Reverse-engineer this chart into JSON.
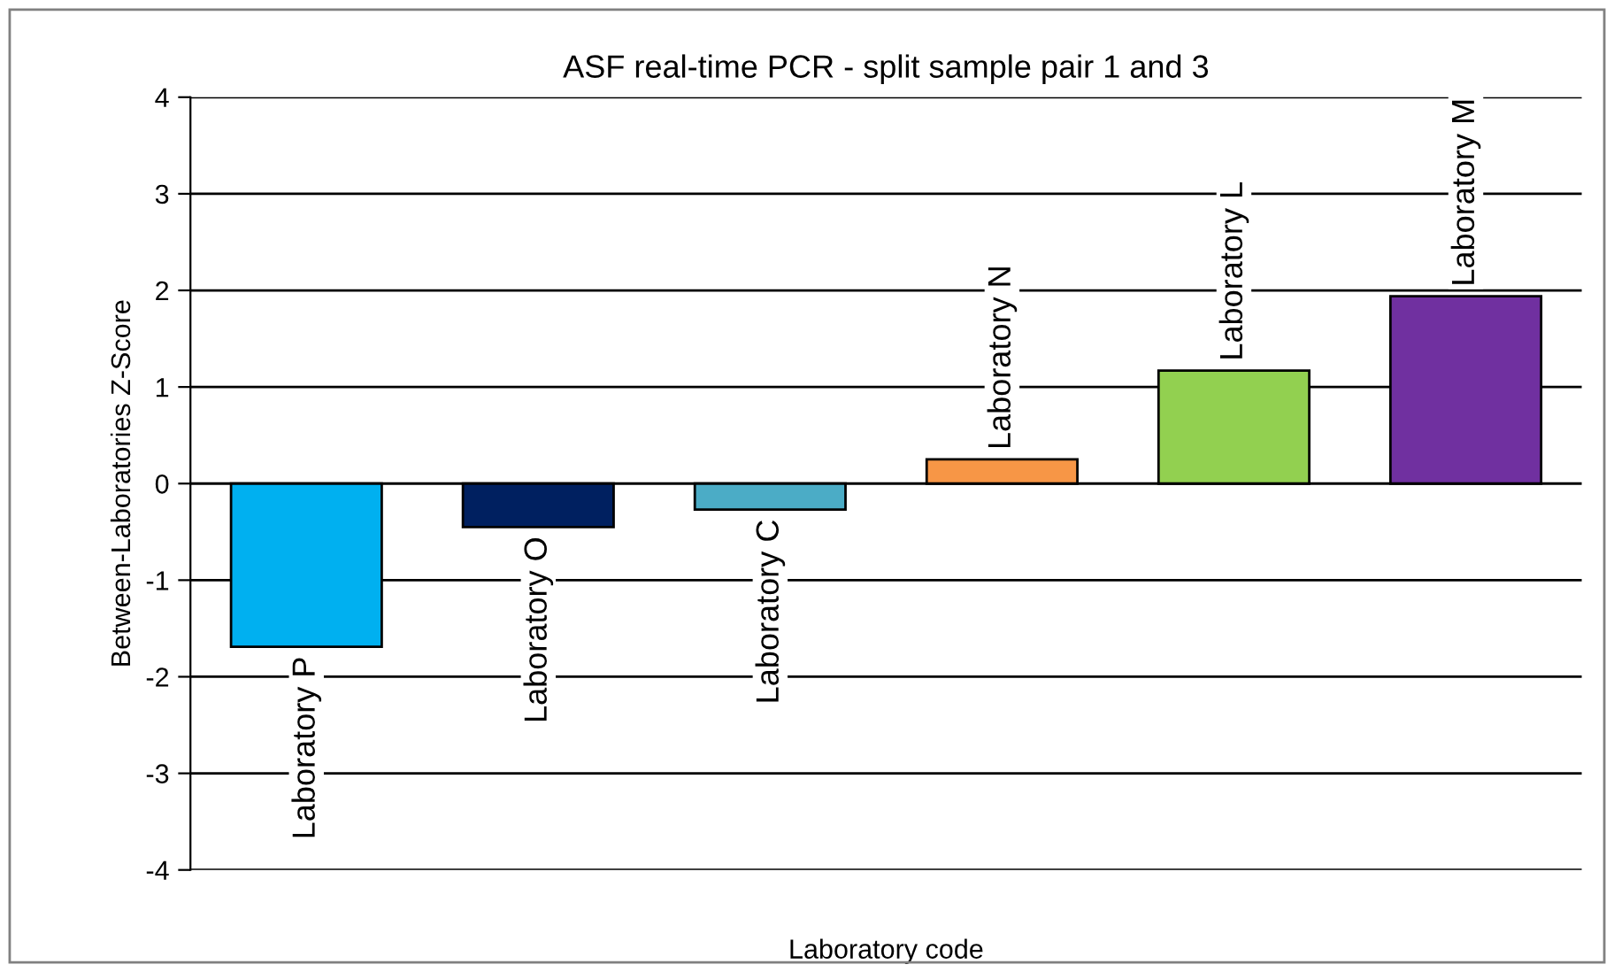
{
  "chart_data": {
    "type": "bar",
    "title": "ASF real-time PCR - split sample pair 1 and 3",
    "xlabel": "Laboratory code",
    "ylabel": "Between-Laboratories Z-Score",
    "categories": [
      "Laboratory P",
      "Laboratory O",
      "Laboratory C",
      "Laboratory N",
      "Laboratory L",
      "Laboratory M"
    ],
    "values": [
      -1.69,
      -0.45,
      -0.27,
      0.25,
      1.17,
      1.94
    ],
    "colors": [
      "#00b0f0",
      "#002060",
      "#4bacc6",
      "#f79646",
      "#92d050",
      "#7030a0"
    ],
    "ylim": [
      -4,
      4
    ],
    "yticks": [
      -4,
      -3,
      -2,
      -1,
      0,
      1,
      2,
      3,
      4
    ],
    "grid": "y"
  }
}
